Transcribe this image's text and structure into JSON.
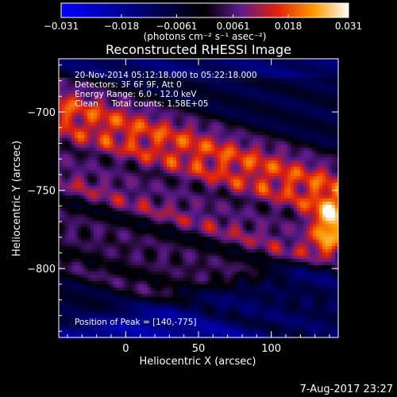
{
  "chart_data": {
    "type": "heatmap",
    "title": "Reconstructed RHESSI Image",
    "xlabel": "Heliocentric X (arcsec)",
    "ylabel": "Heliocentric Y (arcsec)",
    "xlim": [
      -46,
      146
    ],
    "ylim": [
      -844,
      -666
    ],
    "x_ticks": [
      0,
      50,
      100
    ],
    "x_tick_labels": [
      "0",
      "50",
      "100"
    ],
    "y_ticks": [
      -700,
      -750,
      -800
    ],
    "y_tick_labels": [
      "−700",
      "−750",
      "−800"
    ],
    "colorbar": {
      "min": -0.031,
      "max": 0.031,
      "tick_values": [
        -0.031,
        -0.018,
        -0.0061,
        0.0061,
        0.018,
        0.031
      ],
      "tick_labels": [
        "−0.031",
        "−0.018",
        "−0.0061",
        "0.0061",
        "0.018",
        "0.031"
      ],
      "unit_label": "(photons cm⁻² s⁻¹ asec⁻²)",
      "colors": [
        "#0000ff",
        "#000000",
        "#5a1a8c",
        "#e0200c",
        "#ff9a00",
        "#ffffff"
      ]
    },
    "annotations": [
      "20-Nov-2014 05:12:18.000 to 05:22:18.000",
      "Detectors: 3F 6F 9F, Att 0",
      "Energy Range: 6.0 - 12.0 keV",
      "Clean     Total counts: 1.58E+05"
    ],
    "peak_label": "Position of Peak = [140,-775]",
    "peak": {
      "x": 140,
      "y": -775
    },
    "bands": [
      {
        "slope": -0.28,
        "y_at_x0": -720,
        "width": 13,
        "amplitude": 0.027
      },
      {
        "slope": -0.28,
        "y_at_x0": -700,
        "width": 9,
        "amplitude": 0.018
      },
      {
        "slope": -0.28,
        "y_at_x0": -755,
        "width": 9,
        "amplitude": 0.022
      },
      {
        "slope": -0.28,
        "y_at_x0": -785,
        "width": 8,
        "amplitude": 0.017
      },
      {
        "slope": -0.28,
        "y_at_x0": -808,
        "width": 7,
        "amplitude": 0.014
      }
    ]
  },
  "footer": {
    "date": "7-Aug-2017 23:27"
  }
}
